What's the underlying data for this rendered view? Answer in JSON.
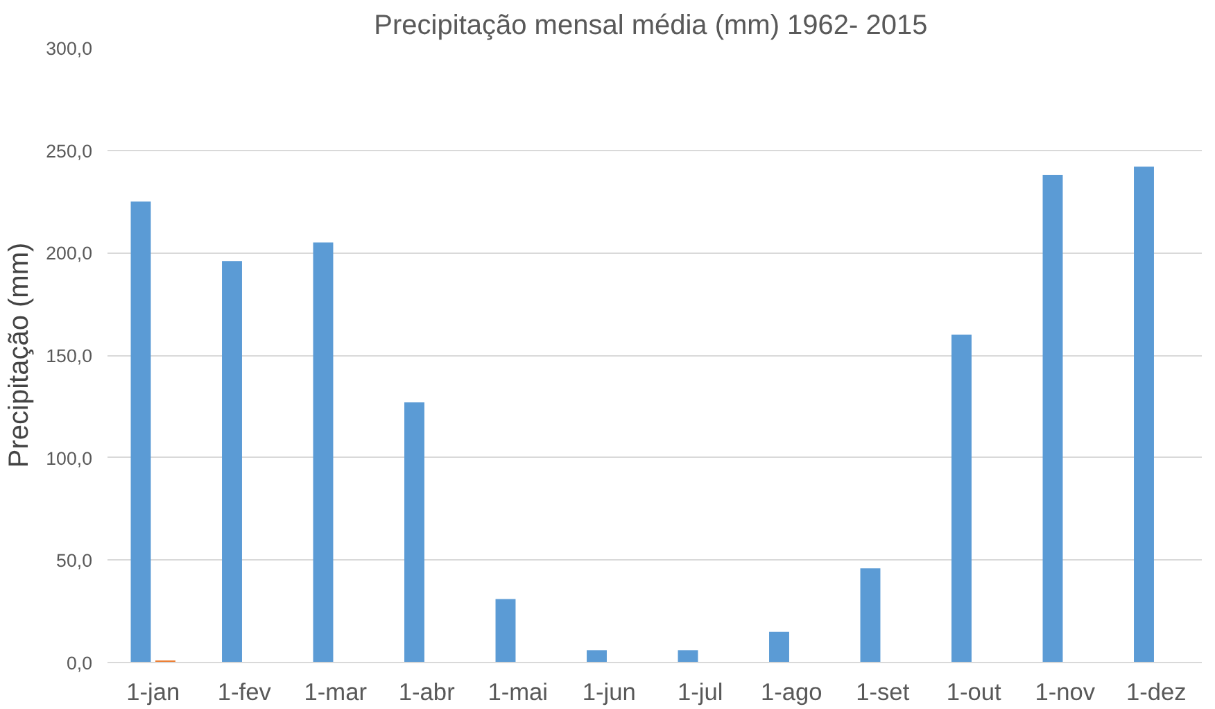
{
  "chart_data": {
    "type": "bar",
    "title": "Precipitação mensal média (mm)  1962- 2015",
    "ylabel": "Precipitação (mm)",
    "categories": [
      "1-jan",
      "1-fev",
      "1-mar",
      "1-abr",
      "1-mai",
      "1-jun",
      "1-jul",
      "1-ago",
      "1-set",
      "1-out",
      "1-nov",
      "1-dez"
    ],
    "series": [
      {
        "color": "#5b9bd5",
        "values": [
          225,
          196,
          205,
          127,
          31,
          6,
          6,
          15,
          46,
          160,
          238,
          242
        ]
      },
      {
        "color": "#ed7d31",
        "values": [
          1,
          null,
          null,
          null,
          null,
          null,
          null,
          null,
          null,
          null,
          null,
          null
        ]
      }
    ],
    "ylim": [
      0,
      300
    ],
    "yticks": [
      {
        "value": 0,
        "label": "0,0"
      },
      {
        "value": 50,
        "label": "50,0"
      },
      {
        "value": 100,
        "label": "100,0"
      },
      {
        "value": 150,
        "label": "150,0"
      },
      {
        "value": 200,
        "label": "200,0"
      },
      {
        "value": 250,
        "label": "250,0"
      },
      {
        "value": 300,
        "label": "300,0"
      }
    ],
    "grid": "y"
  }
}
